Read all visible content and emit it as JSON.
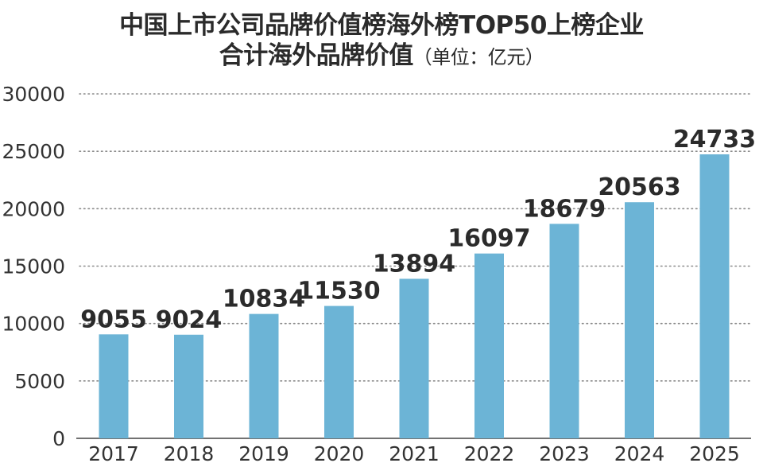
{
  "chart_data": {
    "type": "bar",
    "title_line1": "中国上市公司品牌价值榜海外榜TOP50上榜企业",
    "title_line2": "合计海外品牌价值",
    "title_unit": "（单位：亿元）",
    "categories": [
      "2017",
      "2018",
      "2019",
      "2020",
      "2021",
      "2022",
      "2023",
      "2024",
      "2025"
    ],
    "values": [
      9055,
      9024,
      10834,
      11530,
      13894,
      16097,
      18679,
      20563,
      24733
    ],
    "ylim": [
      0,
      30000
    ],
    "yticks": [
      0,
      5000,
      10000,
      15000,
      20000,
      25000,
      30000
    ],
    "grid": true,
    "bar_color": "#6cb4d6",
    "grid_color": "#8a8a8a"
  }
}
